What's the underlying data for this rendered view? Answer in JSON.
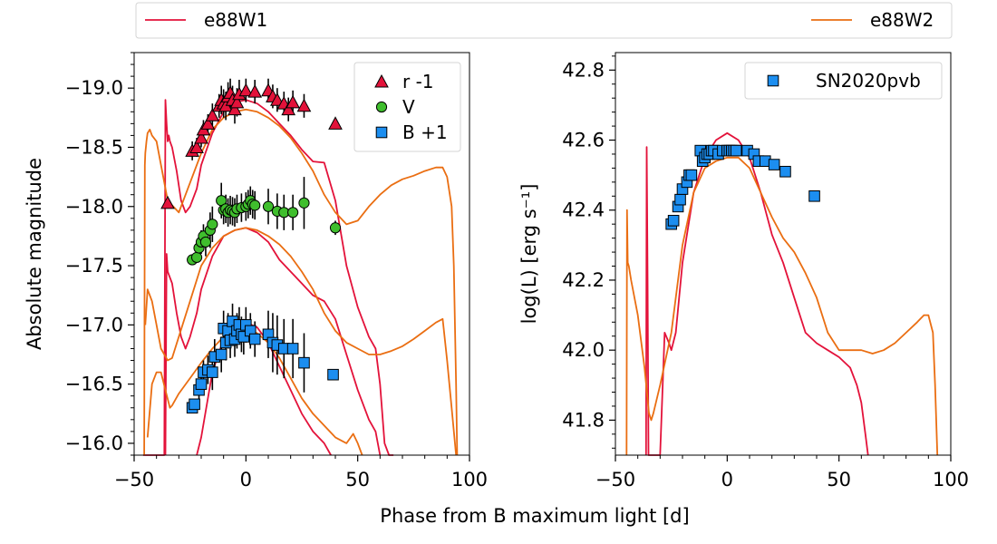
{
  "figure": {
    "xlabel": "Phase from B maximum light [d]",
    "legend_top": [
      {
        "label": "e88W1",
        "color": "#e3123a"
      },
      {
        "label": "e88W2",
        "color": "#ea6e12"
      }
    ]
  },
  "colors": {
    "e88W1": "#e3123a",
    "e88W2": "#ea6e12",
    "r_marker": "#e3123a",
    "v_marker": "#3fbe2d",
    "b_marker": "#1c8ef0"
  },
  "chart_data": [
    {
      "type": "scatter",
      "title": "",
      "xlabel": "",
      "ylabel": "Absolute magnitude",
      "xlim": [
        -50,
        100
      ],
      "ylim": [
        -15.9,
        -19.3
      ],
      "y_inverted": true,
      "xticks": [
        -50,
        0,
        50,
        100
      ],
      "xtick_labels": [
        "−50",
        "0",
        "50",
        "100"
      ],
      "yticks": [
        -19.0,
        -18.5,
        -18.0,
        -17.5,
        -17.0,
        -16.5,
        -16.0
      ],
      "ytick_labels": [
        "−19.0",
        "−18.5",
        "−18.0",
        "−17.5",
        "−17.0",
        "−16.5",
        "−16.0"
      ],
      "legend": {
        "position": "top-right",
        "entries": [
          "r -1",
          "V",
          "B +1"
        ]
      },
      "series": [
        {
          "name": "r -1",
          "marker": "triangle",
          "color": "#e3123a",
          "x": [
            -35,
            -24,
            -22,
            -20,
            -19,
            -17,
            -15,
            -12,
            -11,
            -10,
            -9,
            -8,
            -7,
            -6,
            -5,
            -4,
            -3,
            0,
            4,
            10,
            12,
            14,
            17,
            19,
            21,
            26,
            40
          ],
          "y": [
            -18.03,
            -18.47,
            -18.5,
            -18.58,
            -18.65,
            -18.7,
            -18.77,
            -18.85,
            -18.9,
            -18.87,
            -18.85,
            -18.93,
            -18.96,
            -18.9,
            -18.82,
            -18.88,
            -18.95,
            -18.98,
            -18.97,
            -18.98,
            -18.93,
            -18.9,
            -18.87,
            -18.82,
            -18.88,
            -18.85,
            -18.7
          ],
          "err": [
            0,
            0.08,
            0.08,
            0.08,
            0.08,
            0.08,
            0.1,
            0.1,
            0.12,
            0.12,
            0.12,
            0.12,
            0.12,
            0.12,
            0.12,
            0.12,
            0.12,
            0.1,
            0.1,
            0.1,
            0.1,
            0.1,
            0.1,
            0.1,
            0.1,
            0.1,
            0
          ]
        },
        {
          "name": "V",
          "marker": "circle",
          "color": "#3fbe2d",
          "x": [
            -24,
            -22,
            -21,
            -20,
            -19,
            -18,
            -16,
            -15,
            -11,
            -10,
            -9,
            -8,
            -7,
            -6,
            -5,
            -4,
            -2,
            0,
            1,
            2,
            3,
            4,
            10,
            14,
            17,
            21,
            26,
            40
          ],
          "y": [
            -17.55,
            -17.57,
            -17.65,
            -17.7,
            -17.75,
            -17.7,
            -17.8,
            -17.85,
            -18.05,
            -17.97,
            -17.98,
            -17.95,
            -17.97,
            -17.96,
            -17.95,
            -17.98,
            -17.99,
            -18.0,
            -18.02,
            -18.05,
            -18.02,
            -18.01,
            -18.0,
            -17.96,
            -17.95,
            -17.95,
            -18.03,
            -17.82
          ],
          "err": [
            0,
            0,
            0.08,
            0.1,
            0.1,
            0.12,
            0.15,
            0.15,
            0.15,
            0.12,
            0.12,
            0.12,
            0.12,
            0.12,
            0.12,
            0.12,
            0.12,
            0.12,
            0.12,
            0.12,
            0.12,
            0.12,
            0.15,
            0.15,
            0.15,
            0.15,
            0.22,
            0.06
          ]
        },
        {
          "name": "B +1",
          "marker": "square",
          "color": "#1c8ef0",
          "x": [
            -24,
            -23,
            -21,
            -20,
            -19,
            -17,
            -15,
            -14,
            -11,
            -10,
            -9,
            -8,
            -7,
            -6,
            -5,
            -4,
            -3,
            -2,
            -1,
            0,
            2,
            4,
            10,
            12,
            14,
            17,
            21,
            26,
            39
          ],
          "y": [
            -16.3,
            -16.33,
            -16.45,
            -16.5,
            -16.6,
            -16.62,
            -16.6,
            -16.73,
            -16.75,
            -16.97,
            -16.85,
            -16.95,
            -16.87,
            -17.03,
            -16.88,
            -16.95,
            -17.0,
            -16.92,
            -16.9,
            -17.0,
            -16.95,
            -16.88,
            -16.92,
            -16.85,
            -16.83,
            -16.8,
            -16.8,
            -16.68,
            -16.58
          ],
          "err": [
            0,
            0,
            0.08,
            0.08,
            0.1,
            0.12,
            0.15,
            0.15,
            0.15,
            0.15,
            0.15,
            0.15,
            0.15,
            0.15,
            0.15,
            0.15,
            0.15,
            0.15,
            0.15,
            0.15,
            0.15,
            0.15,
            0.2,
            0.25,
            0.25,
            0.25,
            0.25,
            0.25,
            0
          ]
        }
      ],
      "model_curves": [
        {
          "name": "e88W1 (r)",
          "color": "#e3123a",
          "x": [
            -46,
            -45.5,
            -36.5,
            -36,
            -35.5,
            -35,
            -34.5,
            -34,
            -33,
            -31,
            -29,
            -27,
            -25,
            -22,
            -20,
            -15,
            -10,
            -5,
            0,
            5,
            10,
            15,
            20,
            25,
            30,
            35,
            40,
            45,
            50,
            55,
            58,
            60,
            62,
            64,
            66
          ],
          "y": [
            -15.9,
            -15.9,
            -15.9,
            -18.9,
            -18.7,
            -18.55,
            -18.6,
            -18.55,
            -18.5,
            -18.3,
            -18.05,
            -17.95,
            -18.0,
            -18.15,
            -18.35,
            -18.62,
            -18.8,
            -18.88,
            -18.9,
            -18.87,
            -18.8,
            -18.7,
            -18.6,
            -18.48,
            -18.38,
            -18.37,
            -18.05,
            -17.5,
            -17.15,
            -16.9,
            -16.8,
            -16.5,
            -16.0,
            -15.9,
            -15.9
          ]
        },
        {
          "name": "e88W1 (V)",
          "color": "#e3123a",
          "x": [
            -36,
            -35.5,
            -35,
            -33,
            -31,
            -29,
            -27,
            -25,
            -22,
            -20,
            -15,
            -10,
            -5,
            0,
            5,
            10,
            15,
            20,
            25,
            30,
            35,
            40,
            45,
            50,
            55,
            58,
            60
          ],
          "y": [
            -15.9,
            -17.6,
            -17.45,
            -17.35,
            -17.1,
            -16.9,
            -16.8,
            -16.9,
            -17.1,
            -17.3,
            -17.58,
            -17.75,
            -17.8,
            -17.82,
            -17.78,
            -17.7,
            -17.55,
            -17.45,
            -17.35,
            -17.25,
            -17.2,
            -17.05,
            -16.75,
            -16.45,
            -16.2,
            -16.1,
            -15.9
          ]
        },
        {
          "name": "e88W1 (B)",
          "color": "#e3123a",
          "x": [
            -22,
            -20,
            -15,
            -10,
            -5,
            0,
            5,
            10,
            15,
            20,
            25,
            30,
            35,
            38
          ],
          "y": [
            -15.9,
            -16.05,
            -16.6,
            -16.88,
            -16.98,
            -17.02,
            -16.98,
            -16.85,
            -16.65,
            -16.45,
            -16.25,
            -16.1,
            -16.0,
            -15.9
          ]
        },
        {
          "name": "e88W2 (r)",
          "color": "#ea6e12",
          "x": [
            -45.5,
            -45.2,
            -45,
            -44.5,
            -44,
            -43,
            -42,
            -40,
            -37,
            -35,
            -30,
            -25,
            -20,
            -15,
            -10,
            -5,
            0,
            5,
            10,
            15,
            20,
            25,
            30,
            35,
            40,
            45,
            50,
            55,
            60,
            65,
            70,
            75,
            80,
            85,
            88,
            90,
            92,
            93,
            94,
            94.5
          ],
          "y": [
            -15.9,
            -18.35,
            -18.45,
            -18.55,
            -18.62,
            -18.65,
            -18.6,
            -18.55,
            -18.25,
            -18.05,
            -17.95,
            -18.2,
            -18.45,
            -18.65,
            -18.75,
            -18.8,
            -18.82,
            -18.8,
            -18.75,
            -18.68,
            -18.58,
            -18.45,
            -18.3,
            -18.1,
            -17.95,
            -17.85,
            -17.88,
            -18.0,
            -18.1,
            -18.18,
            -18.23,
            -18.26,
            -18.3,
            -18.33,
            -18.33,
            -18.25,
            -18.0,
            -17.5,
            -16.5,
            -15.9
          ]
        },
        {
          "name": "e88W2 (V)",
          "color": "#ea6e12",
          "x": [
            -45,
            -44,
            -42,
            -40,
            -38,
            -35,
            -33,
            -30,
            -25,
            -20,
            -15,
            -10,
            -5,
            0,
            5,
            10,
            15,
            20,
            25,
            30,
            35,
            40,
            45,
            50,
            55,
            60,
            65,
            70,
            75,
            80,
            85,
            88,
            90,
            92,
            94
          ],
          "y": [
            -17.0,
            -17.3,
            -17.2,
            -17.0,
            -16.8,
            -16.7,
            -16.72,
            -16.9,
            -17.2,
            -17.5,
            -17.65,
            -17.75,
            -17.8,
            -17.82,
            -17.8,
            -17.75,
            -17.68,
            -17.58,
            -17.45,
            -17.3,
            -17.1,
            -16.95,
            -16.85,
            -16.8,
            -16.75,
            -16.75,
            -16.78,
            -16.82,
            -16.88,
            -16.95,
            -17.02,
            -17.05,
            -16.7,
            -16.3,
            -15.9
          ]
        },
        {
          "name": "e88W2 (B)",
          "color": "#ea6e12",
          "x": [
            -44,
            -42,
            -40,
            -38,
            -36,
            -34,
            -33,
            -30,
            -25,
            -20,
            -15,
            -10,
            -5,
            0,
            5,
            10,
            15,
            20,
            25,
            30,
            35,
            40,
            45,
            48,
            50,
            52
          ],
          "y": [
            -16.05,
            -16.5,
            -16.6,
            -16.6,
            -16.45,
            -16.3,
            -16.32,
            -16.42,
            -16.55,
            -16.68,
            -16.8,
            -16.9,
            -16.95,
            -16.97,
            -16.93,
            -16.85,
            -16.72,
            -16.55,
            -16.38,
            -16.25,
            -16.15,
            -16.05,
            -16.0,
            -16.08,
            -16.0,
            -15.9
          ]
        }
      ]
    },
    {
      "type": "scatter",
      "title": "",
      "xlabel": "",
      "ylabel": "log(L) [erg s⁻¹]",
      "xlim": [
        -50,
        100
      ],
      "ylim": [
        41.7,
        42.85
      ],
      "xticks": [
        -50,
        0,
        50,
        100
      ],
      "xtick_labels": [
        "−50",
        "0",
        "50",
        "100"
      ],
      "yticks": [
        41.8,
        42.0,
        42.2,
        42.4,
        42.6,
        42.8
      ],
      "ytick_labels": [
        "41.8",
        "42.0",
        "42.2",
        "42.4",
        "42.6",
        "42.8"
      ],
      "legend": {
        "position": "top-right",
        "entries": [
          "SN2020pvb"
        ]
      },
      "series": [
        {
          "name": "SN2020pvb",
          "marker": "square",
          "color": "#1c8ef0",
          "x": [
            -25,
            -24,
            -22,
            -21,
            -20,
            -18,
            -17,
            -16,
            -12,
            -11,
            -10,
            -9,
            -8,
            -7,
            -6,
            -4,
            -2,
            0,
            1,
            2,
            3,
            4,
            9,
            12,
            14,
            17,
            21,
            26,
            39
          ],
          "y": [
            42.36,
            42.37,
            42.41,
            42.43,
            42.46,
            42.48,
            42.5,
            42.5,
            42.57,
            42.54,
            42.55,
            42.56,
            42.56,
            42.57,
            42.57,
            42.56,
            42.57,
            42.57,
            42.57,
            42.57,
            42.57,
            42.57,
            42.57,
            42.56,
            42.54,
            42.54,
            42.53,
            42.51,
            42.44
          ]
        }
      ],
      "model_curves": [
        {
          "name": "e88W1",
          "color": "#e3123a",
          "x": [
            -36.3,
            -36,
            -35.8,
            -35.6,
            -35.2,
            -30,
            -28,
            -26,
            -25,
            -23,
            -20,
            -15,
            -10,
            -5,
            0,
            5,
            10,
            15,
            20,
            25,
            30,
            35,
            40,
            45,
            50,
            55,
            58,
            60,
            62,
            63
          ],
          "y": [
            41.7,
            42.58,
            42.4,
            42.2,
            41.7,
            41.7,
            42.05,
            42.02,
            42.0,
            42.05,
            42.25,
            42.45,
            42.55,
            42.6,
            42.62,
            42.6,
            42.55,
            42.45,
            42.33,
            42.25,
            42.15,
            42.05,
            42.02,
            42.0,
            41.98,
            41.95,
            41.9,
            41.85,
            41.75,
            41.7
          ]
        },
        {
          "name": "e88W2",
          "color": "#ea6e12",
          "x": [
            -45,
            -44.8,
            -44.5,
            -44,
            -43,
            -40,
            -37,
            -35,
            -34,
            -33,
            -30,
            -25,
            -20,
            -15,
            -10,
            -5,
            0,
            5,
            10,
            15,
            20,
            25,
            30,
            35,
            40,
            45,
            50,
            55,
            60,
            65,
            70,
            75,
            80,
            85,
            88,
            90,
            92,
            93,
            94
          ],
          "y": [
            41.7,
            42.4,
            42.25,
            42.24,
            42.2,
            42.1,
            41.95,
            41.82,
            41.8,
            41.82,
            41.9,
            42.05,
            42.3,
            42.45,
            42.52,
            42.54,
            42.55,
            42.55,
            42.52,
            42.45,
            42.38,
            42.32,
            42.28,
            42.22,
            42.15,
            42.05,
            42.0,
            42.0,
            42.0,
            41.99,
            42.0,
            42.02,
            42.05,
            42.08,
            42.1,
            42.1,
            42.05,
            41.9,
            41.7
          ]
        }
      ]
    }
  ]
}
